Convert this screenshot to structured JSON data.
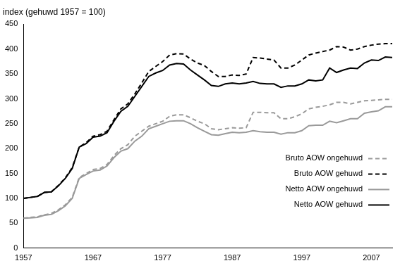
{
  "chart_data": {
    "type": "line",
    "y_label": "index (gehuwd 1957 = 100)",
    "x": [
      1957,
      1958,
      1959,
      1960,
      1961,
      1962,
      1963,
      1964,
      1965,
      1966,
      1967,
      1968,
      1969,
      1970,
      1971,
      1972,
      1973,
      1974,
      1975,
      1976,
      1977,
      1978,
      1979,
      1980,
      1981,
      1982,
      1983,
      1984,
      1985,
      1986,
      1987,
      1988,
      1989,
      1990,
      1991,
      1992,
      1993,
      1994,
      1995,
      1996,
      1997,
      1998,
      1999,
      2000,
      2001,
      2002,
      2003,
      2004,
      2005,
      2006,
      2007,
      2008,
      2009,
      2010
    ],
    "series": [
      {
        "name": "Bruto AOW ongehuwd",
        "color": "#9a9a9a",
        "line_style": "dashed",
        "values": [
          60,
          62,
          63,
          67,
          70,
          77,
          87,
          102,
          142,
          150,
          158,
          160,
          168,
          186,
          200,
          208,
          225,
          235,
          245,
          250,
          255,
          265,
          268,
          268,
          262,
          255,
          250,
          240,
          238,
          240,
          242,
          241,
          242,
          273,
          273,
          272,
          272,
          260,
          260,
          264,
          270,
          280,
          283,
          285,
          288,
          293,
          293,
          290,
          293,
          296,
          297,
          298,
          299,
          299
        ]
      },
      {
        "name": "Bruto AOW gehuwd",
        "color": "#000000",
        "line_style": "dashed",
        "values": [
          100,
          102,
          104,
          112,
          113,
          126,
          141,
          162,
          203,
          212,
          225,
          228,
          235,
          258,
          280,
          290,
          310,
          332,
          355,
          365,
          375,
          388,
          391,
          390,
          380,
          372,
          367,
          355,
          345,
          345,
          348,
          347,
          350,
          383,
          382,
          380,
          378,
          362,
          362,
          368,
          378,
          388,
          392,
          395,
          398,
          405,
          404,
          398,
          400,
          405,
          408,
          410,
          411,
          411
        ]
      },
      {
        "name": "Netto AOW ongehuwd",
        "color": "#9a9a9a",
        "line_style": "solid",
        "values": [
          60,
          61,
          62,
          66,
          68,
          75,
          85,
          100,
          140,
          148,
          155,
          157,
          165,
          182,
          195,
          200,
          215,
          225,
          240,
          245,
          250,
          255,
          256,
          256,
          250,
          242,
          235,
          228,
          227,
          230,
          233,
          232,
          233,
          236,
          234,
          233,
          233,
          229,
          232,
          232,
          236,
          246,
          247,
          247,
          255,
          252,
          256,
          260,
          260,
          271,
          274,
          276,
          284,
          284
        ]
      },
      {
        "name": "Netto AOW gehuwd",
        "color": "#000000",
        "line_style": "solid",
        "values": [
          100,
          102,
          104,
          112,
          113,
          125,
          140,
          160,
          203,
          210,
          223,
          225,
          232,
          255,
          275,
          285,
          305,
          325,
          345,
          352,
          357,
          368,
          371,
          370,
          358,
          348,
          338,
          327,
          325,
          330,
          332,
          330,
          332,
          335,
          331,
          330,
          330,
          323,
          326,
          326,
          330,
          338,
          336,
          338,
          362,
          353,
          358,
          362,
          361,
          372,
          378,
          377,
          384,
          383
        ]
      }
    ],
    "xlim": [
      1957,
      2010
    ],
    "xticks": [
      1957,
      1967,
      1977,
      1987,
      1997,
      2007
    ],
    "ylim": [
      0,
      450
    ],
    "yticks": [
      0,
      50,
      100,
      150,
      200,
      250,
      300,
      350,
      400,
      450
    ],
    "grid": false,
    "legend": "right"
  }
}
